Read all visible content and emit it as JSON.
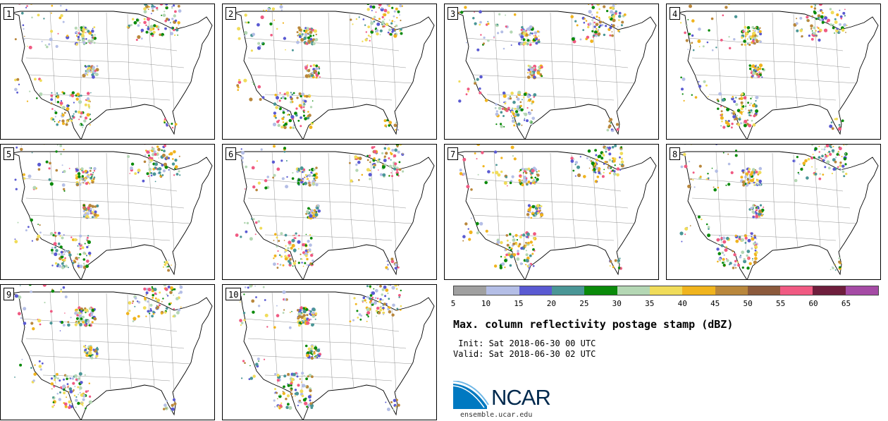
{
  "title": "Max. column reflectivity postage stamp (dBZ)",
  "init_line": " Init: Sat 2018-06-30 00 UTC",
  "valid_line": "Valid: Sat 2018-06-30 02 UTC",
  "logo_text": "NCAR",
  "site": "ensemble.ucar.edu",
  "members": [
    "1",
    "2",
    "3",
    "4",
    "5",
    "6",
    "7",
    "8",
    "9",
    "10"
  ],
  "colorbar": {
    "colors": [
      "#a0a0a0",
      "#b4bee6",
      "#5a5ad2",
      "#4a9696",
      "#0a8a0a",
      "#b4d7b4",
      "#f0dc5a",
      "#f0b41e",
      "#b9873c",
      "#8c5a3c",
      "#f05a82",
      "#6e1e3c",
      "#a54ba5"
    ],
    "ticks": [
      "5",
      "10",
      "15",
      "20",
      "25",
      "30",
      "35",
      "40",
      "45",
      "50",
      "55",
      "60",
      "65"
    ]
  }
}
